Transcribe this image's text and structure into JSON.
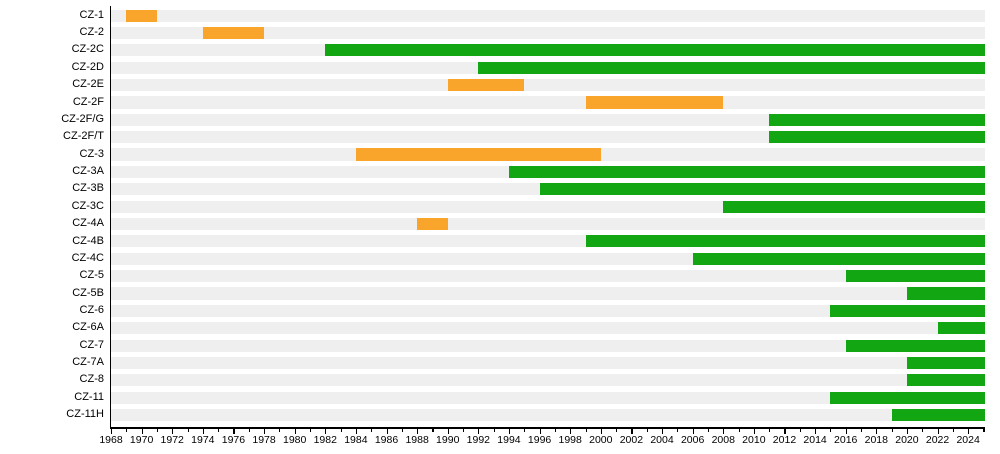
{
  "chart_data": {
    "type": "bar",
    "variant": "horizontal-range-timeline (gantt-style production timeline)",
    "title": "",
    "xlabel": "",
    "ylabel": "",
    "legend": null,
    "grid": false,
    "axis": {
      "min_year": 1968,
      "max_year": 2025.1,
      "tick_step_years": 1,
      "label_step_years": 2
    },
    "x_tick_labels": [
      "1968",
      "1970",
      "1972",
      "1974",
      "1976",
      "1978",
      "1980",
      "1982",
      "1984",
      "1986",
      "1988",
      "1990",
      "1992",
      "1994",
      "1996",
      "1998",
      "2000",
      "2002",
      "2004",
      "2006",
      "2008",
      "2010",
      "2012",
      "2014",
      "2016",
      "2018",
      "2020",
      "2022",
      "2024"
    ],
    "categories": [
      "CZ-1",
      "CZ-2",
      "CZ-2C",
      "CZ-2D",
      "CZ-2E",
      "CZ-2F",
      "CZ-2F/G",
      "CZ-2F/T",
      "CZ-3",
      "CZ-3A",
      "CZ-3B",
      "CZ-3C",
      "CZ-4A",
      "CZ-4B",
      "CZ-4C",
      "CZ-5",
      "CZ-5B",
      "CZ-6",
      "CZ-6A",
      "CZ-7",
      "CZ-7A",
      "CZ-8",
      "CZ-11",
      "CZ-11H"
    ],
    "rows": [
      {
        "label": "CZ-1",
        "start": 1969,
        "end": 1971,
        "status": "discontinued"
      },
      {
        "label": "CZ-2",
        "start": 1974,
        "end": 1978,
        "status": "discontinued"
      },
      {
        "label": "CZ-2C",
        "start": 1982,
        "end": "present",
        "status": "in_production"
      },
      {
        "label": "CZ-2D",
        "start": 1992,
        "end": "present",
        "status": "in_production"
      },
      {
        "label": "CZ-2E",
        "start": 1990,
        "end": 1995,
        "status": "discontinued"
      },
      {
        "label": "CZ-2F",
        "start": 1999,
        "end": 2008,
        "status": "discontinued"
      },
      {
        "label": "CZ-2F/G",
        "start": 2011,
        "end": "present",
        "status": "in_production"
      },
      {
        "label": "CZ-2F/T",
        "start": 2011,
        "end": "present",
        "status": "in_production"
      },
      {
        "label": "CZ-3",
        "start": 1984,
        "end": 2000,
        "status": "discontinued"
      },
      {
        "label": "CZ-3A",
        "start": 1994,
        "end": "present",
        "status": "in_production"
      },
      {
        "label": "CZ-3B",
        "start": 1996,
        "end": "present",
        "status": "in_production"
      },
      {
        "label": "CZ-3C",
        "start": 2008,
        "end": "present",
        "status": "in_production"
      },
      {
        "label": "CZ-4A",
        "start": 1988,
        "end": 1990,
        "status": "discontinued"
      },
      {
        "label": "CZ-4B",
        "start": 1999,
        "end": "present",
        "status": "in_production"
      },
      {
        "label": "CZ-4C",
        "start": 2006,
        "end": "present",
        "status": "in_production"
      },
      {
        "label": "CZ-5",
        "start": 2016,
        "end": "present",
        "status": "in_production"
      },
      {
        "label": "CZ-5B",
        "start": 2020,
        "end": "present",
        "status": "in_production"
      },
      {
        "label": "CZ-6",
        "start": 2015,
        "end": "present",
        "status": "in_production"
      },
      {
        "label": "CZ-6A",
        "start": 2022,
        "end": "present",
        "status": "in_production"
      },
      {
        "label": "CZ-7",
        "start": 2016,
        "end": "present",
        "status": "in_production"
      },
      {
        "label": "CZ-7A",
        "start": 2020,
        "end": "present",
        "status": "in_production"
      },
      {
        "label": "CZ-8",
        "start": 2020,
        "end": "present",
        "status": "in_production"
      },
      {
        "label": "CZ-11",
        "start": 2015,
        "end": "present",
        "status": "in_production"
      },
      {
        "label": "CZ-11H",
        "start": 2019,
        "end": "present",
        "status": "in_production"
      }
    ],
    "colors": {
      "in_production": "#12a612",
      "discontinued": "#f9a52b",
      "row_band": "#efefef",
      "axis": "#000000",
      "background": "#ffffff"
    }
  }
}
